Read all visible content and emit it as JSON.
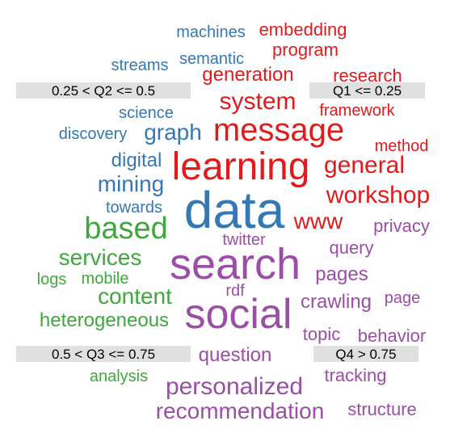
{
  "chart_data": {
    "type": "wordcloud",
    "colors": {
      "Q1": "#e31a1c",
      "Q2": "#3478b4",
      "Q3": "#3fa83c",
      "Q4": "#9a4ea6",
      "label_bg": "#e0e0e0"
    },
    "quadrant_labels": [
      {
        "id": "Q2",
        "text": "0.25 < Q2 <= 0.5"
      },
      {
        "id": "Q1",
        "text": "Q1 <= 0.25"
      },
      {
        "id": "Q3",
        "text": "0.5 < Q3 <= 0.75"
      },
      {
        "id": "Q4",
        "text": "Q4 > 0.75"
      }
    ],
    "words": [
      {
        "text": "machines",
        "group": "Q2",
        "weight": 2
      },
      {
        "text": "embedding",
        "group": "Q1",
        "weight": 2
      },
      {
        "text": "program",
        "group": "Q1",
        "weight": 2
      },
      {
        "text": "semantic",
        "group": "Q2",
        "weight": 2
      },
      {
        "text": "streams",
        "group": "Q2",
        "weight": 2
      },
      {
        "text": "generation",
        "group": "Q1",
        "weight": 3
      },
      {
        "text": "research",
        "group": "Q1",
        "weight": 2
      },
      {
        "text": "system",
        "group": "Q1",
        "weight": 4
      },
      {
        "text": "framework",
        "group": "Q1",
        "weight": 2
      },
      {
        "text": "science",
        "group": "Q2",
        "weight": 2
      },
      {
        "text": "graph",
        "group": "Q2",
        "weight": 4
      },
      {
        "text": "message",
        "group": "Q1",
        "weight": 6
      },
      {
        "text": "discovery",
        "group": "Q2",
        "weight": 2
      },
      {
        "text": "method",
        "group": "Q1",
        "weight": 2
      },
      {
        "text": "digital",
        "group": "Q2",
        "weight": 3
      },
      {
        "text": "learning",
        "group": "Q1",
        "weight": 7
      },
      {
        "text": "general",
        "group": "Q1",
        "weight": 4
      },
      {
        "text": "mining",
        "group": "Q2",
        "weight": 4
      },
      {
        "text": "workshop",
        "group": "Q1",
        "weight": 4
      },
      {
        "text": "towards",
        "group": "Q2",
        "weight": 2
      },
      {
        "text": "data",
        "group": "Q2",
        "weight": 9
      },
      {
        "text": "based",
        "group": "Q3",
        "weight": 6
      },
      {
        "text": "www",
        "group": "Q1",
        "weight": 4
      },
      {
        "text": "privacy",
        "group": "Q4",
        "weight": 2
      },
      {
        "text": "twitter",
        "group": "Q4",
        "weight": 2
      },
      {
        "text": "query",
        "group": "Q4",
        "weight": 2
      },
      {
        "text": "services",
        "group": "Q3",
        "weight": 4
      },
      {
        "text": "search",
        "group": "Q4",
        "weight": 8
      },
      {
        "text": "pages",
        "group": "Q4",
        "weight": 3
      },
      {
        "text": "logs",
        "group": "Q3",
        "weight": 2
      },
      {
        "text": "mobile",
        "group": "Q3",
        "weight": 2
      },
      {
        "text": "rdf",
        "group": "Q4",
        "weight": 2
      },
      {
        "text": "content",
        "group": "Q3",
        "weight": 4
      },
      {
        "text": "crawling",
        "group": "Q4",
        "weight": 3
      },
      {
        "text": "page",
        "group": "Q4",
        "weight": 2
      },
      {
        "text": "social",
        "group": "Q4",
        "weight": 7
      },
      {
        "text": "heterogeneous",
        "group": "Q3",
        "weight": 3
      },
      {
        "text": "topic",
        "group": "Q4",
        "weight": 3
      },
      {
        "text": "behavior",
        "group": "Q4",
        "weight": 3
      },
      {
        "text": "question",
        "group": "Q4",
        "weight": 3
      },
      {
        "text": "analysis",
        "group": "Q3",
        "weight": 2
      },
      {
        "text": "tracking",
        "group": "Q4",
        "weight": 3
      },
      {
        "text": "personalized",
        "group": "Q4",
        "weight": 4
      },
      {
        "text": "recommendation",
        "group": "Q4",
        "weight": 4
      },
      {
        "text": "structure",
        "group": "Q4",
        "weight": 2
      }
    ]
  }
}
